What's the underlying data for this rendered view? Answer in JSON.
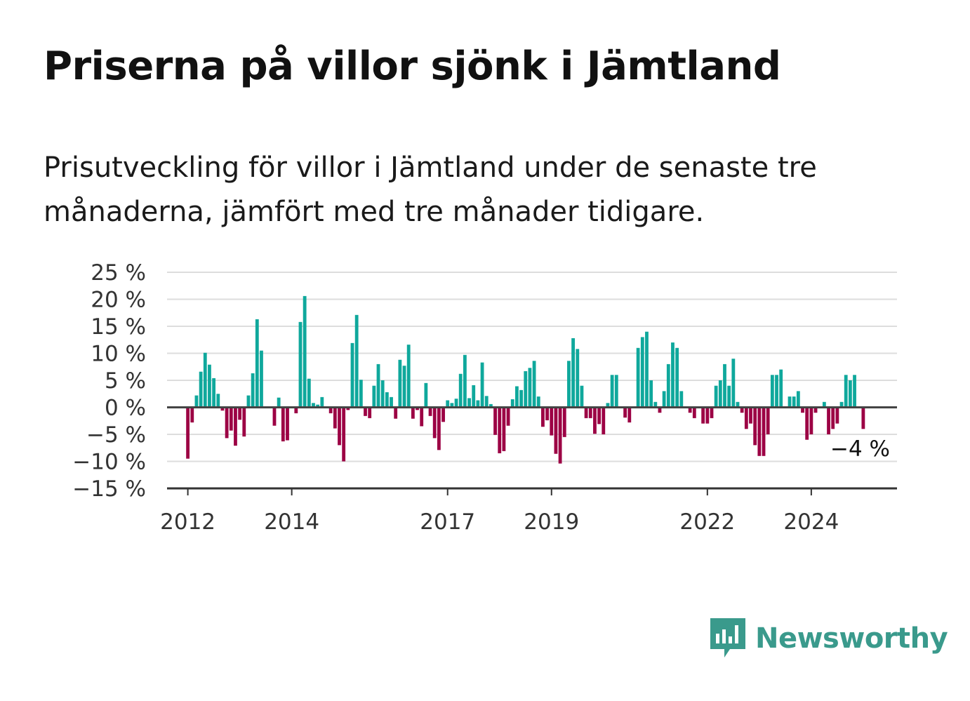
{
  "title": "Priserna på villor sjönk i Jämtland",
  "subtitle": "Prisutveckling för villor i Jämtland under de senaste tre månaderna, jämfört med tre månader tidigare.",
  "brand": {
    "name": "Newsworthy",
    "icon": "newsworthy-logo-icon",
    "color": "#3a9a8c"
  },
  "chart_data": {
    "type": "bar",
    "colors": {
      "positive": "#0fa89c",
      "negative": "#9c0044"
    },
    "ylim": [
      -15,
      25
    ],
    "yticks": [
      25,
      20,
      15,
      10,
      5,
      0,
      -5,
      -10,
      -15
    ],
    "ytick_labels": [
      "25 %",
      "20 %",
      "15 %",
      "10 %",
      "5 %",
      "0 %",
      "−5 %",
      "−10 %",
      "−15 %"
    ],
    "xlim": [
      2011.6,
      2025.65
    ],
    "xticks": [
      2012,
      2014,
      2017,
      2019,
      2022,
      2024
    ],
    "xtick_labels": [
      "2012",
      "2014",
      "2017",
      "2019",
      "2022",
      "2024"
    ],
    "grid": true,
    "last_value_label": "−4 %",
    "start_month": "2012-01",
    "values": [
      -9.5,
      -2.8,
      2.2,
      6.6,
      10.1,
      7.9,
      5.4,
      2.5,
      -0.6,
      -5.7,
      -4.3,
      -7.1,
      -2.3,
      -5.4,
      2.2,
      6.3,
      16.3,
      10.5,
      0,
      0,
      -3.4,
      1.8,
      -6.3,
      -6.1,
      0,
      -1.1,
      15.8,
      20.6,
      5.3,
      0.8,
      0.5,
      1.9,
      0,
      -1.1,
      -3.9,
      -7.0,
      -10.0,
      -0.5,
      11.9,
      17.1,
      5.1,
      -1.6,
      -2.0,
      4.0,
      8.0,
      5.0,
      2.8,
      1.9,
      -2.1,
      8.8,
      7.7,
      11.6,
      -2.1,
      -0.5,
      -3.5,
      4.5,
      -1.6,
      -5.7,
      -7.9,
      -2.7,
      1.3,
      0.8,
      1.6,
      6.2,
      9.7,
      1.7,
      4.1,
      1.3,
      8.3,
      2.1,
      0.6,
      -5.1,
      -8.5,
      -8.1,
      -3.4,
      1.5,
      3.9,
      3.2,
      6.7,
      7.3,
      8.6,
      2.0,
      -3.6,
      -2.4,
      -5.2,
      -8.6,
      -10.4,
      -5.5,
      8.6,
      12.8,
      10.8,
      4.0,
      -2.0,
      -2.0,
      -4.9,
      -3.1,
      -5.0,
      0.8,
      6.0,
      6.0,
      0,
      -1.9,
      -2.8,
      0,
      11.0,
      13.0,
      14.0,
      5.0,
      1.0,
      -1.0,
      3.0,
      8.0,
      12.0,
      11.0,
      3.0,
      0,
      -1.0,
      -2.0,
      0,
      -3.0,
      -3.0,
      -2.0,
      4.0,
      5.0,
      8.0,
      4.0,
      9.0,
      1.0,
      -1.0,
      -4.0,
      -3.0,
      -7.0,
      -9.0,
      -9.0,
      -5.0,
      6.0,
      6.0,
      7.0,
      0,
      2.0,
      2.0,
      3.0,
      -1.0,
      -6.0,
      -5.0,
      -1.0,
      0,
      1.0,
      -5.0,
      -4.0,
      -3.0,
      1.0,
      6.0,
      5.0,
      6.0,
      0,
      -4.0
    ]
  }
}
